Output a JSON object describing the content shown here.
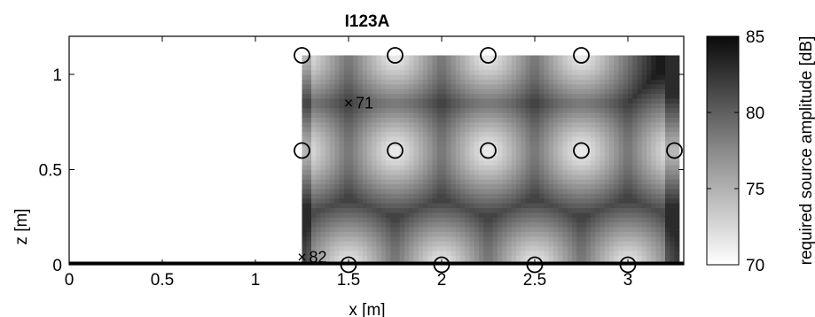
{
  "chart_data": {
    "type": "heatmap",
    "title": "I123A",
    "xlabel": "x [m]",
    "ylabel": "z [m]",
    "xlim": [
      0,
      3.3
    ],
    "ylim": [
      0,
      1.2
    ],
    "xticks": [
      "0",
      "0.5",
      "1",
      "1.5",
      "2",
      "2.5",
      "3"
    ],
    "xtick_values": [
      0,
      0.5,
      1,
      1.5,
      2,
      2.5,
      3
    ],
    "yticks": [
      "0",
      "0.5",
      "1"
    ],
    "ytick_values": [
      0,
      0.5,
      1
    ],
    "colorbar": {
      "label": "required source amplitude [dB]",
      "range": [
        70,
        85
      ],
      "ticks": [
        "70",
        "75",
        "80",
        "85"
      ],
      "tick_values": [
        70,
        75,
        80,
        85
      ],
      "colormap": "gray-reversed"
    },
    "heatmap_region": {
      "x": [
        1.25,
        3.27
      ],
      "z": [
        0,
        1.1
      ]
    },
    "grid": false,
    "sources": [
      {
        "x": 1.25,
        "z": 1.1
      },
      {
        "x": 1.75,
        "z": 1.1
      },
      {
        "x": 2.25,
        "z": 1.1
      },
      {
        "x": 2.75,
        "z": 1.1
      },
      {
        "x": 1.25,
        "z": 0.6
      },
      {
        "x": 1.75,
        "z": 0.6
      },
      {
        "x": 2.25,
        "z": 0.6
      },
      {
        "x": 2.75,
        "z": 0.6
      },
      {
        "x": 3.25,
        "z": 0.6
      },
      {
        "x": 1.5,
        "z": 0.0
      },
      {
        "x": 2.0,
        "z": 0.0
      },
      {
        "x": 2.5,
        "z": 0.0
      },
      {
        "x": 3.0,
        "z": 0.0
      }
    ],
    "annotations": [
      {
        "marker": "x",
        "x": 1.5,
        "z": 0.85,
        "text": "71"
      },
      {
        "marker": "x",
        "x": 1.25,
        "z": 0.04,
        "text": "82"
      }
    ]
  }
}
